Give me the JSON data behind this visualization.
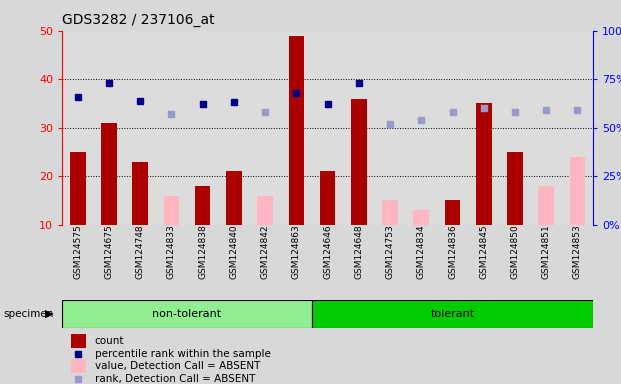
{
  "title": "GDS3282 / 237106_at",
  "samples": [
    "GSM124575",
    "GSM124675",
    "GSM124748",
    "GSM124833",
    "GSM124838",
    "GSM124840",
    "GSM124842",
    "GSM124863",
    "GSM124646",
    "GSM124648",
    "GSM124753",
    "GSM124834",
    "GSM124836",
    "GSM124845",
    "GSM124850",
    "GSM124851",
    "GSM124853"
  ],
  "groups": {
    "non-tolerant": [
      0,
      1,
      2,
      3,
      4,
      5,
      6,
      7
    ],
    "tolerant": [
      8,
      9,
      10,
      11,
      12,
      13,
      14,
      15,
      16
    ]
  },
  "count_values": [
    25,
    31,
    23,
    null,
    18,
    21,
    null,
    49,
    21,
    36,
    null,
    null,
    15,
    35,
    25,
    null,
    null
  ],
  "count_absent": [
    null,
    null,
    null,
    16,
    null,
    null,
    16,
    null,
    null,
    null,
    15,
    13,
    null,
    null,
    null,
    18,
    24
  ],
  "rank_values_pct": [
    66,
    73,
    64,
    null,
    62,
    63,
    null,
    68,
    62,
    73,
    null,
    null,
    null,
    null,
    null,
    null,
    null
  ],
  "rank_absent_pct": [
    null,
    null,
    null,
    57,
    null,
    null,
    58,
    null,
    null,
    null,
    52,
    54,
    58,
    60,
    58,
    59,
    59
  ],
  "ylim_left": [
    10,
    50
  ],
  "ylim_right": [
    0,
    100
  ],
  "yticks_left": [
    10,
    20,
    30,
    40,
    50
  ],
  "yticks_right": [
    0,
    25,
    50,
    75,
    100
  ],
  "bar_color_present": "#AA0000",
  "bar_color_absent": "#FFB6C1",
  "dot_color_present": "#00008B",
  "dot_color_absent": "#9999CC",
  "bg_color": "#D8D8D8",
  "col_color": "#DCDCDC",
  "nt_color": "#90EE90",
  "t_color": "#00CC00"
}
